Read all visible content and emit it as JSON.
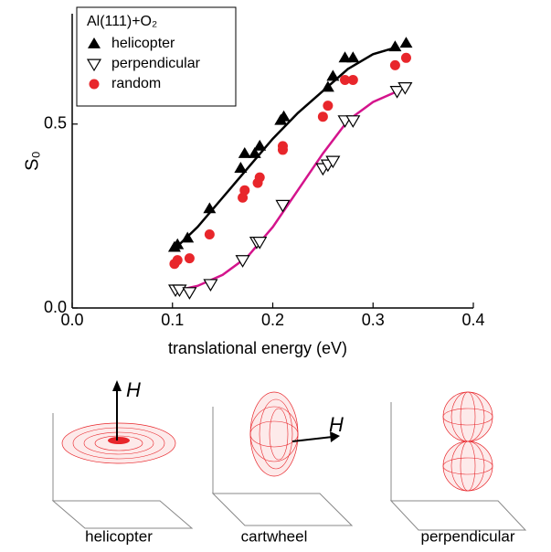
{
  "chart_data": {
    "type": "scatter",
    "legend_title": "Al(111)+O₂",
    "x_label": "translational energy (eV)",
    "y_label": "S₀",
    "xlim": [
      0,
      0.4
    ],
    "ylim": [
      0,
      0.8
    ],
    "xticks": [
      {
        "value": 0,
        "label": "0.0"
      },
      {
        "value": 0.1,
        "label": "0.1"
      },
      {
        "value": 0.2,
        "label": "0.2"
      },
      {
        "value": 0.3,
        "label": "0.3"
      },
      {
        "value": 0.4,
        "label": "0.4"
      }
    ],
    "yticks": [
      {
        "value": 0,
        "label": "0.0"
      },
      {
        "value": 0.5,
        "label": "0.5"
      }
    ],
    "legend": "upper left",
    "series": [
      {
        "name": "helicopter",
        "color": "#000000",
        "marker": "triangle-up",
        "x": [
          0.102,
          0.105,
          0.115,
          0.137,
          0.168,
          0.172,
          0.182,
          0.187,
          0.208,
          0.211,
          0.255,
          0.26,
          0.272,
          0.28,
          0.322,
          0.333
        ],
        "y": [
          0.165,
          0.172,
          0.19,
          0.27,
          0.38,
          0.42,
          0.42,
          0.44,
          0.51,
          0.52,
          0.6,
          0.63,
          0.68,
          0.68,
          0.71,
          0.72
        ]
      },
      {
        "name": "perpendicular",
        "color": "#000000",
        "marker": "triangle-down-open",
        "x": [
          0.103,
          0.107,
          0.117,
          0.138,
          0.17,
          0.184,
          0.187,
          0.21,
          0.25,
          0.255,
          0.26,
          0.272,
          0.28,
          0.324,
          0.332
        ],
        "y": [
          0.05,
          0.05,
          0.043,
          0.065,
          0.13,
          0.18,
          0.18,
          0.28,
          0.38,
          0.39,
          0.4,
          0.51,
          0.51,
          0.59,
          0.6
        ]
      },
      {
        "name": "random",
        "color": "#e8262b",
        "marker": "circle",
        "x": [
          0.102,
          0.105,
          0.117,
          0.137,
          0.17,
          0.172,
          0.185,
          0.187,
          0.21,
          0.21,
          0.25,
          0.255,
          0.272,
          0.28,
          0.322,
          0.333
        ],
        "y": [
          0.12,
          0.13,
          0.135,
          0.2,
          0.3,
          0.32,
          0.34,
          0.355,
          0.43,
          0.44,
          0.52,
          0.55,
          0.62,
          0.62,
          0.66,
          0.68
        ]
      }
    ],
    "curves": [
      {
        "color": "#000000",
        "x": [
          0.1,
          0.125,
          0.15,
          0.175,
          0.2,
          0.225,
          0.25,
          0.275,
          0.3,
          0.325
        ],
        "y": [
          0.155,
          0.22,
          0.3,
          0.38,
          0.46,
          0.53,
          0.59,
          0.65,
          0.69,
          0.71
        ]
      },
      {
        "color": "#d4148c",
        "x": [
          0.1,
          0.125,
          0.15,
          0.175,
          0.2,
          0.225,
          0.25,
          0.275,
          0.3,
          0.325
        ],
        "y": [
          0.045,
          0.06,
          0.09,
          0.14,
          0.22,
          0.32,
          0.42,
          0.51,
          0.56,
          0.59
        ]
      }
    ]
  },
  "illustrations": [
    {
      "label": "helicopter",
      "field": "H"
    },
    {
      "label": "cartwheel",
      "field": "H"
    },
    {
      "label": "perpendicular"
    }
  ]
}
